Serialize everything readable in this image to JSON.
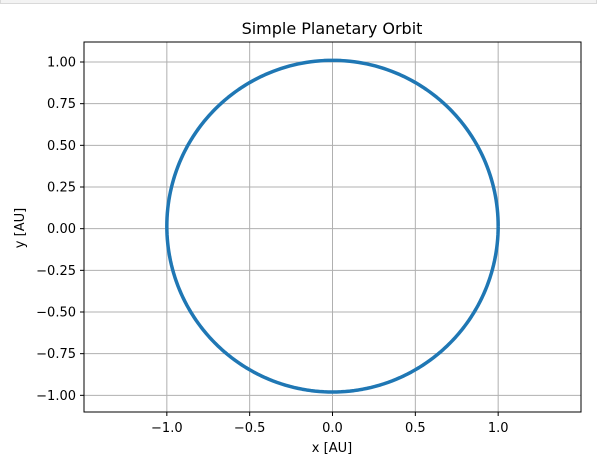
{
  "window": {
    "title": ""
  },
  "chart_data": {
    "type": "line",
    "title": "Simple Planetary Orbit",
    "xlabel": "x [AU]",
    "ylabel": "y [AU]",
    "xlim": [
      -1.5,
      1.5
    ],
    "ylim": [
      -1.1,
      1.12
    ],
    "xticks": [
      -1.0,
      -0.5,
      0.0,
      0.5,
      1.0
    ],
    "xtick_labels": [
      "−1.0",
      "−0.5",
      "0.0",
      "0.5",
      "1.0"
    ],
    "yticks": [
      -1.0,
      -0.75,
      -0.5,
      -0.25,
      0.0,
      0.25,
      0.5,
      0.75,
      1.0
    ],
    "ytick_labels": [
      "−1.00",
      "−0.75",
      "−0.50",
      "−0.25",
      "0.00",
      "0.25",
      "0.50",
      "0.75",
      "1.00"
    ],
    "grid": true,
    "equal_aspect": true,
    "series": [
      {
        "color": "#1f77b4",
        "line_width_pt": 2.5,
        "shape": "closed_orbit",
        "center": [
          0.0,
          0.015
        ],
        "semi_axis_x": 1.0,
        "semi_axis_y": 0.995,
        "x_extent": [
          -1.0,
          1.0
        ],
        "y_extent": [
          -0.98,
          1.01
        ]
      }
    ],
    "colors": {
      "background": "#ffffff",
      "axes_face": "#ffffff",
      "grid": "#b0b0b0",
      "spines": "#000000",
      "line": "#1f77b4"
    }
  }
}
